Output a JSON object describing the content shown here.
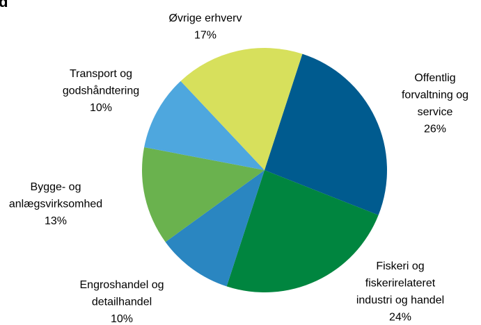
{
  "chart_data": {
    "type": "pie",
    "title": "ld",
    "categories": [
      [
        "Offentlig",
        "forvaltning og",
        "service"
      ],
      [
        "Fiskeri og",
        "fiskerirelateret",
        "industri og handel"
      ],
      [
        "Engroshandel og",
        "detailhandel"
      ],
      [
        "Bygge- og",
        "anlægsvirksomhed"
      ],
      [
        "Transport og",
        "godshåndtering"
      ],
      [
        "Øvrige erhverv"
      ]
    ],
    "values": [
      26,
      24,
      10,
      13,
      10,
      17
    ],
    "value_labels": [
      "26%",
      "24%",
      "10%",
      "13%",
      "10%",
      "17%"
    ],
    "colors": [
      "#005b8f",
      "#00853f",
      "#2a86c1",
      "#6ab24e",
      "#4ea7de",
      "#d7e05c"
    ]
  }
}
